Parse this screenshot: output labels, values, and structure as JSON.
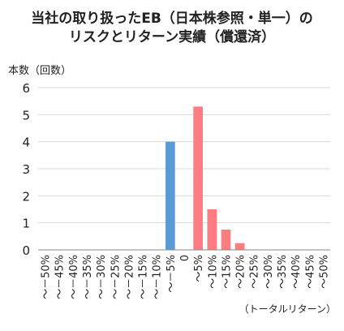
{
  "chart_data": {
    "type": "bar",
    "title_lines": [
      "当社の取り扱ったEB（日本株参照・単一）の",
      "リスクとリターン実績（償還済）"
    ],
    "ylabel": "本数（回数）",
    "xlabel": "（トータルリターン）",
    "ylim": [
      0,
      6
    ],
    "yticks": [
      0,
      1,
      2,
      3,
      4,
      5,
      6
    ],
    "grid": true,
    "categories": [
      "～－50%",
      "～－45%",
      "～－40%",
      "～－35%",
      "～－30%",
      "～－25%",
      "～－20%",
      "～－15%",
      "～－10%",
      "～－5%",
      "0",
      "～5%",
      "～10%",
      "～15%",
      "～20%",
      "～25%",
      "～30%",
      "～35%",
      "～40%",
      "～45%",
      "～50%"
    ],
    "values": [
      0,
      0,
      0,
      0,
      0,
      0,
      0,
      0,
      0,
      4,
      0,
      5.3,
      1.5,
      0.75,
      0.25,
      0,
      0,
      0,
      0,
      0,
      0
    ],
    "colors": {
      "negative": "#5b9bd5",
      "positive": "#ff7c80",
      "grid": "#d9d9d9",
      "axis": "#888888"
    }
  }
}
